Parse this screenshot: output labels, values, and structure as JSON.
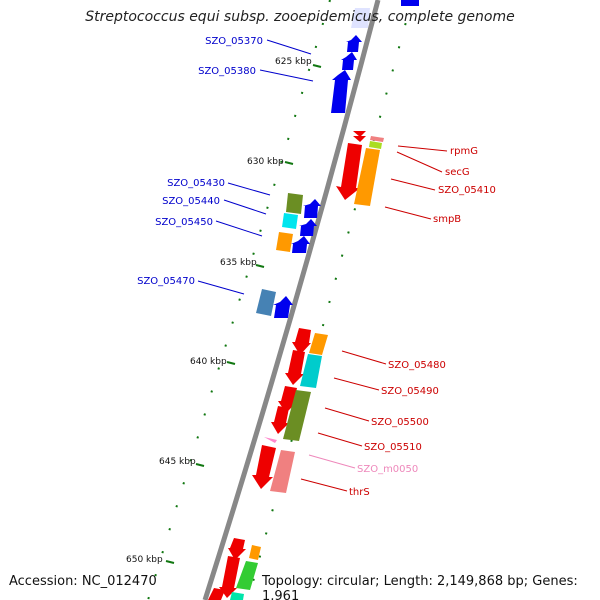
{
  "title": "Streptococcus equi subsp. zooepidemicus, complete genome",
  "footer": {
    "accession": "Accession: NC_012470",
    "summary": "Topology: circular; Length: 2,149,868 bp; Genes: 1,961"
  },
  "colors": {
    "backbone": "#888888",
    "tick": "#117711",
    "forward_label": "#0000cc",
    "reverse_label": "#cc0000"
  },
  "ticks": [
    {
      "label": "625 kbp"
    },
    {
      "label": "630 kbp"
    },
    {
      "label": "635 kbp"
    },
    {
      "label": "640 kbp"
    },
    {
      "label": "645 kbp"
    },
    {
      "label": "650 kbp"
    }
  ],
  "forward_labels": [
    {
      "text": "SZO_05370",
      "color": "#0000cc"
    },
    {
      "text": "SZO_05380",
      "color": "#0000cc"
    },
    {
      "text": "SZO_05430",
      "color": "#0000cc"
    },
    {
      "text": "SZO_05440",
      "color": "#0000cc"
    },
    {
      "text": "SZO_05450",
      "color": "#0000cc"
    },
    {
      "text": "SZO_05470",
      "color": "#0000cc"
    }
  ],
  "reverse_labels": [
    {
      "text": "rpmG",
      "color": "#cc0000"
    },
    {
      "text": "secG",
      "color": "#cc0000"
    },
    {
      "text": "SZO_05410",
      "color": "#cc0000"
    },
    {
      "text": "smpB",
      "color": "#cc0000"
    },
    {
      "text": "SZO_05480",
      "color": "#cc0000"
    },
    {
      "text": "SZO_05490",
      "color": "#cc0000"
    },
    {
      "text": "SZO_05500",
      "color": "#cc0000"
    },
    {
      "text": "SZO_05510",
      "color": "#cc0000"
    },
    {
      "text": "SZO_m0050",
      "color": "#ee88bb"
    },
    {
      "text": "thrS",
      "color": "#cc0000"
    }
  ]
}
